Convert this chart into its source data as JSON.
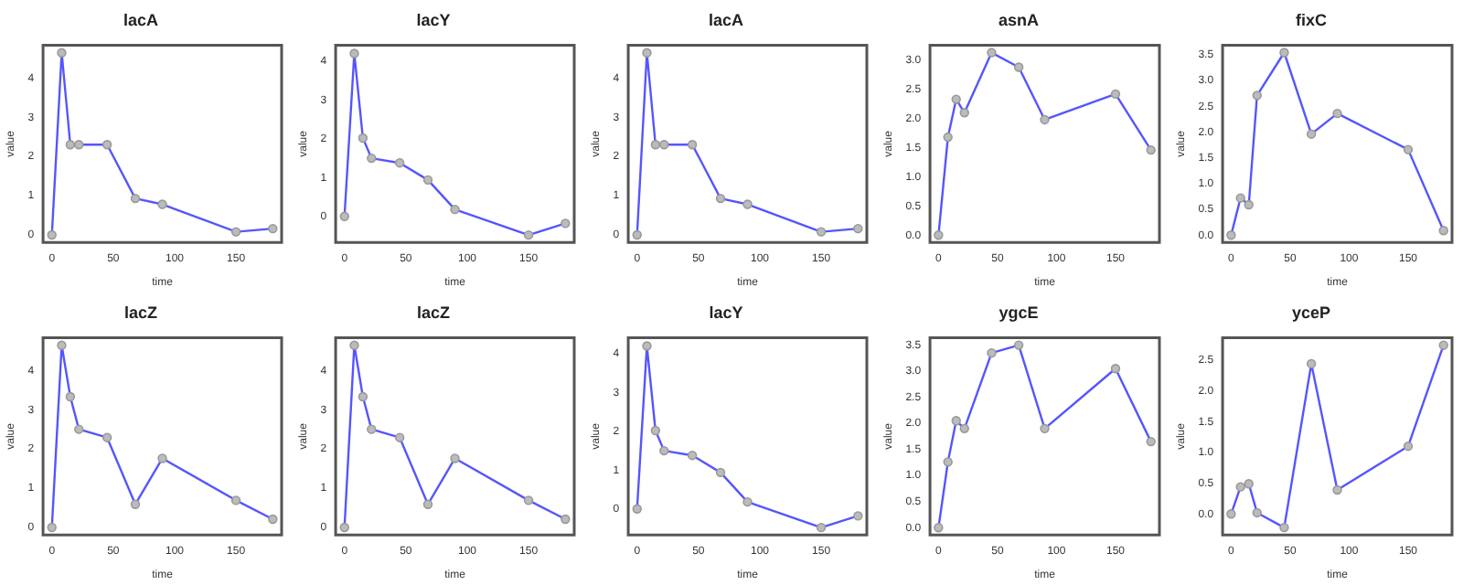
{
  "chart_data": [
    {
      "type": "line",
      "title": "lacA",
      "xlabel": "time",
      "ylabel": "value",
      "marker": "circle",
      "x": [
        0,
        8,
        15,
        22,
        45,
        68,
        90,
        150,
        180
      ],
      "xlim": [
        -7.2,
        187.2
      ],
      "xticks": [
        0,
        50,
        100,
        150
      ],
      "ylim": [
        -0.19,
        4.83
      ],
      "yticks": [
        0,
        1,
        2,
        3,
        4
      ],
      "series": [
        {
          "color": "#5555ff",
          "values": [
            0,
            4.64,
            2.3,
            2.3,
            2.3,
            0.93,
            0.78,
            0.08,
            0.16
          ]
        }
      ]
    },
    {
      "type": "line",
      "title": "lacY",
      "xlabel": "time",
      "ylabel": "value",
      "marker": "circle",
      "x": [
        0,
        8,
        15,
        22,
        45,
        68,
        90,
        150,
        180
      ],
      "xlim": [
        -7.2,
        187.2
      ],
      "xticks": [
        0,
        50,
        100,
        150
      ],
      "ylim": [
        -0.67,
        4.41
      ],
      "yticks": [
        0,
        1,
        2,
        3,
        4
      ],
      "series": [
        {
          "color": "#5555ff",
          "values": [
            0,
            4.2,
            2.02,
            1.5,
            1.38,
            0.94,
            0.18,
            -0.48,
            -0.18
          ]
        }
      ]
    },
    {
      "type": "line",
      "title": "lacA",
      "xlabel": "time",
      "ylabel": "value",
      "marker": "circle",
      "x": [
        0,
        8,
        15,
        22,
        45,
        68,
        90,
        150,
        180
      ],
      "xlim": [
        -7.2,
        187.2
      ],
      "xticks": [
        0,
        50,
        100,
        150
      ],
      "ylim": [
        -0.19,
        4.83
      ],
      "yticks": [
        0,
        1,
        2,
        3,
        4
      ],
      "series": [
        {
          "color": "#5555ff",
          "values": [
            0,
            4.64,
            2.3,
            2.3,
            2.3,
            0.93,
            0.78,
            0.08,
            0.16
          ]
        }
      ]
    },
    {
      "type": "line",
      "title": "asnA",
      "xlabel": "time",
      "ylabel": "value",
      "marker": "circle",
      "x": [
        0,
        8,
        15,
        22,
        45,
        68,
        90,
        150,
        180
      ],
      "xlim": [
        -7.2,
        187.2
      ],
      "xticks": [
        0,
        50,
        100,
        150
      ],
      "ylim": [
        -0.125,
        3.255
      ],
      "yticks": [
        {
          "value": 0,
          "label": "0.0"
        },
        {
          "value": 0.5,
          "label": "0.5"
        },
        {
          "value": 1,
          "label": "1.0"
        },
        {
          "value": 1.5,
          "label": "1.5"
        },
        {
          "value": 2,
          "label": "2.0"
        },
        {
          "value": 2.5,
          "label": "2.5"
        },
        {
          "value": 3,
          "label": "3.0"
        }
      ],
      "series": [
        {
          "color": "#5555ff",
          "values": [
            0,
            1.68,
            2.33,
            2.1,
            3.13,
            2.88,
            1.98,
            2.42,
            1.46
          ]
        }
      ]
    },
    {
      "type": "line",
      "title": "fixC",
      "xlabel": "time",
      "ylabel": "value",
      "marker": "circle",
      "x": [
        0,
        8,
        15,
        22,
        45,
        68,
        90,
        150,
        180
      ],
      "xlim": [
        -7.2,
        187.2
      ],
      "xticks": [
        0,
        50,
        100,
        150
      ],
      "ylim": [
        -0.14,
        3.68
      ],
      "yticks": [
        {
          "value": 0,
          "label": "0.0"
        },
        {
          "value": 0.5,
          "label": "0.5"
        },
        {
          "value": 1,
          "label": "1.0"
        },
        {
          "value": 1.5,
          "label": "1.5"
        },
        {
          "value": 2,
          "label": "2.0"
        },
        {
          "value": 2.5,
          "label": "2.5"
        },
        {
          "value": 3,
          "label": "3.0"
        },
        {
          "value": 3.5,
          "label": "3.5"
        }
      ],
      "series": [
        {
          "color": "#5555ff",
          "values": [
            0,
            0.72,
            0.59,
            2.71,
            3.54,
            1.96,
            2.36,
            1.66,
            0.09
          ]
        }
      ]
    },
    {
      "type": "line",
      "title": "lacZ",
      "xlabel": "time",
      "ylabel": "value",
      "marker": "circle",
      "x": [
        0,
        8,
        15,
        22,
        45,
        68,
        90,
        150,
        180
      ],
      "xlim": [
        -7.2,
        187.2
      ],
      "xticks": [
        0,
        50,
        100,
        150
      ],
      "ylim": [
        -0.19,
        4.83
      ],
      "yticks": [
        0,
        1,
        2,
        3,
        4
      ],
      "series": [
        {
          "color": "#5555ff",
          "values": [
            0,
            4.64,
            3.33,
            2.5,
            2.29,
            0.59,
            1.76,
            0.69,
            0.21
          ]
        }
      ]
    },
    {
      "type": "line",
      "title": "lacZ",
      "xlabel": "time",
      "ylabel": "value",
      "marker": "circle",
      "x": [
        0,
        8,
        15,
        22,
        45,
        68,
        90,
        150,
        180
      ],
      "xlim": [
        -7.2,
        187.2
      ],
      "xticks": [
        0,
        50,
        100,
        150
      ],
      "ylim": [
        -0.19,
        4.83
      ],
      "yticks": [
        0,
        1,
        2,
        3,
        4
      ],
      "series": [
        {
          "color": "#5555ff",
          "values": [
            0,
            4.64,
            3.33,
            2.5,
            2.29,
            0.59,
            1.76,
            0.69,
            0.21
          ]
        }
      ]
    },
    {
      "type": "line",
      "title": "lacY",
      "xlabel": "time",
      "ylabel": "value",
      "marker": "circle",
      "x": [
        0,
        8,
        15,
        22,
        45,
        68,
        90,
        150,
        180
      ],
      "xlim": [
        -7.2,
        187.2
      ],
      "xticks": [
        0,
        50,
        100,
        150
      ],
      "ylim": [
        -0.67,
        4.41
      ],
      "yticks": [
        0,
        1,
        2,
        3,
        4
      ],
      "series": [
        {
          "color": "#5555ff",
          "values": [
            0,
            4.2,
            2.02,
            1.5,
            1.38,
            0.94,
            0.18,
            -0.48,
            -0.18
          ]
        }
      ]
    },
    {
      "type": "line",
      "title": "ygcE",
      "xlabel": "time",
      "ylabel": "value",
      "marker": "circle",
      "x": [
        0,
        8,
        15,
        22,
        45,
        68,
        90,
        150,
        180
      ],
      "xlim": [
        -7.2,
        187.2
      ],
      "xticks": [
        0,
        50,
        100,
        150
      ],
      "ylim": [
        -0.14,
        3.64
      ],
      "yticks": [
        {
          "value": 0,
          "label": "0.0"
        },
        {
          "value": 0.5,
          "label": "0.5"
        },
        {
          "value": 1,
          "label": "1.0"
        },
        {
          "value": 1.5,
          "label": "1.5"
        },
        {
          "value": 2,
          "label": "2.0"
        },
        {
          "value": 2.5,
          "label": "2.5"
        },
        {
          "value": 3,
          "label": "3.0"
        },
        {
          "value": 3.5,
          "label": "3.5"
        }
      ],
      "series": [
        {
          "color": "#5555ff",
          "values": [
            0,
            1.26,
            2.05,
            1.9,
            3.35,
            3.5,
            1.9,
            3.05,
            1.65
          ]
        }
      ]
    },
    {
      "type": "line",
      "title": "yceP",
      "xlabel": "time",
      "ylabel": "value",
      "marker": "circle",
      "x": [
        0,
        8,
        15,
        22,
        45,
        68,
        90,
        150,
        180
      ],
      "xlim": [
        -7.2,
        187.2
      ],
      "xticks": [
        0,
        50,
        100,
        150
      ],
      "ylim": [
        -0.34,
        2.86
      ],
      "yticks": [
        {
          "value": 0,
          "label": "0.0"
        },
        {
          "value": 0.5,
          "label": "0.5"
        },
        {
          "value": 1,
          "label": "1.0"
        },
        {
          "value": 1.5,
          "label": "1.5"
        },
        {
          "value": 2,
          "label": "2.0"
        },
        {
          "value": 2.5,
          "label": "2.5"
        }
      ],
      "series": [
        {
          "color": "#5555ff",
          "values": [
            0,
            0.44,
            0.49,
            0.02,
            -0.22,
            2.44,
            0.39,
            1.1,
            2.74
          ]
        }
      ]
    }
  ]
}
